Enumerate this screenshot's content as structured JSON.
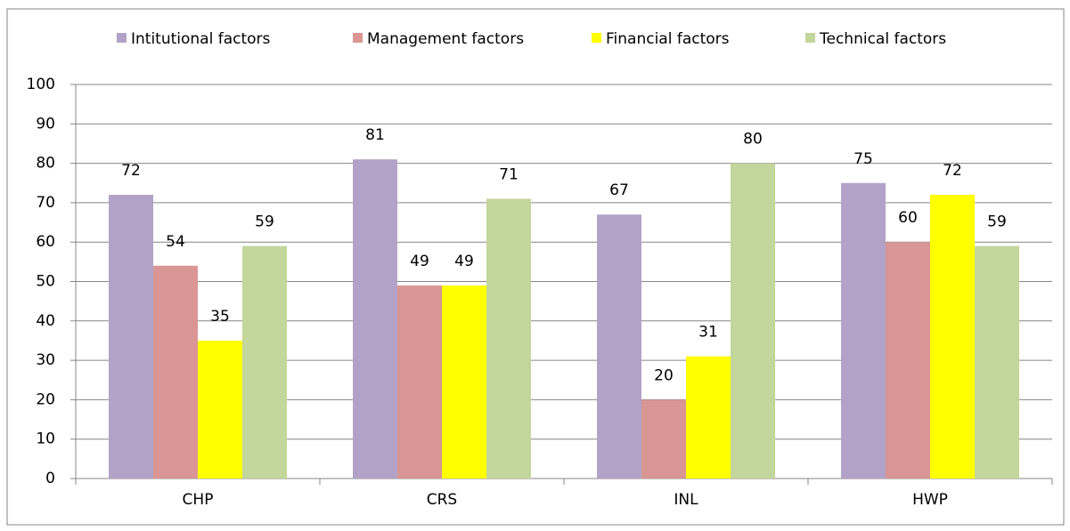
{
  "chart_data": {
    "type": "bar",
    "categories": [
      "CHP",
      "CRS",
      "INL",
      "HWP"
    ],
    "series": [
      {
        "name": "Intitutional factors",
        "color": "#b3a2c7",
        "values": [
          72,
          81,
          67,
          75
        ]
      },
      {
        "name": "Management factors",
        "color": "#d99694",
        "values": [
          54,
          49,
          20,
          60
        ]
      },
      {
        "name": "Financial factors",
        "color": "#ffff00",
        "values": [
          35,
          49,
          31,
          72
        ]
      },
      {
        "name": "Technical factors",
        "color": "#c3d69b",
        "values": [
          59,
          71,
          80,
          59
        ]
      }
    ],
    "ylim": [
      0,
      100
    ],
    "yticks": [
      0,
      10,
      20,
      30,
      40,
      50,
      60,
      70,
      80,
      90,
      100
    ],
    "grid": true,
    "legend": "top"
  }
}
